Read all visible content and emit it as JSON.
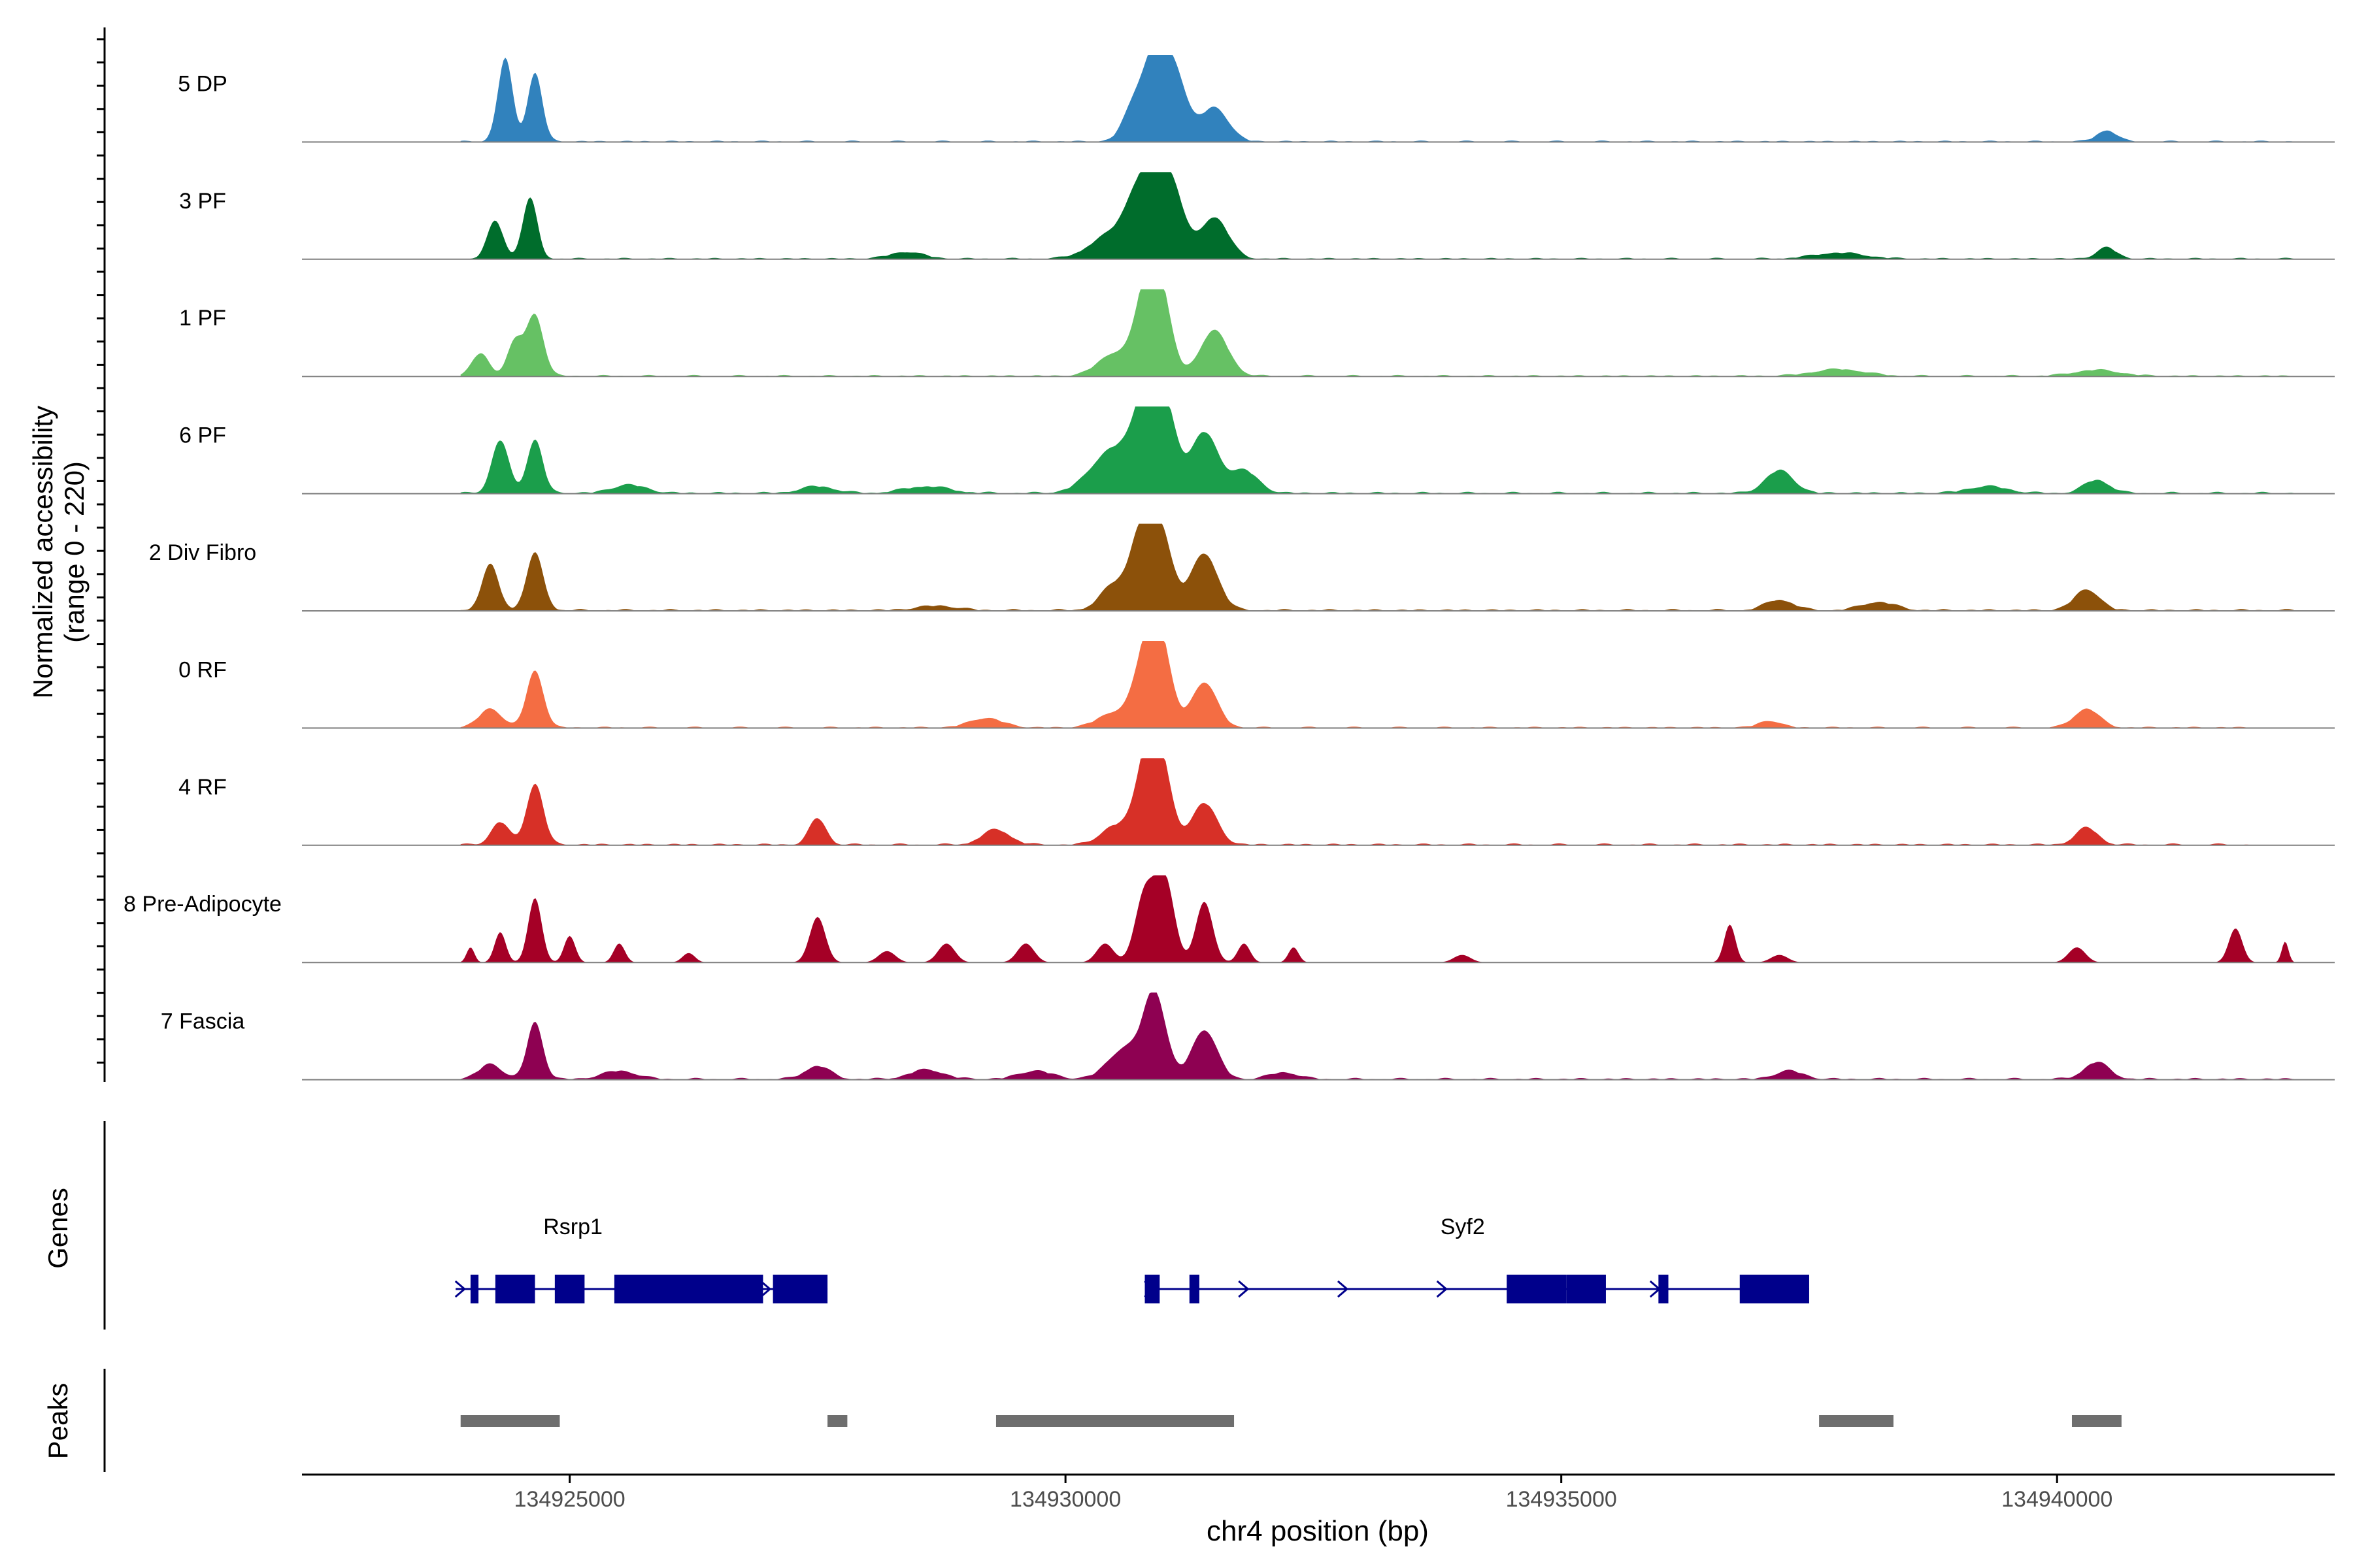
{
  "chart_data": {
    "type": "area",
    "title": "",
    "xlabel": "chr4 position (bp)",
    "ylabel": "Normalized accessibility",
    "ylabel_range": "(range 0 - 220)",
    "ylim": [
      0,
      220
    ],
    "xlim": [
      134922300,
      134942800
    ],
    "x_ticks": [
      134925000,
      134930000,
      134935000,
      134940000
    ],
    "x_tick_labels": [
      "134925000",
      "134930000",
      "134935000",
      "134940000"
    ],
    "tracks": [
      {
        "name": "5 DP",
        "color": "#3182bd",
        "baseline": 4,
        "peaks": [
          [
            134924350,
            220,
            26
          ],
          [
            134924650,
            180,
            26
          ],
          [
            134930700,
            100,
            40
          ],
          [
            134930900,
            200,
            38
          ],
          [
            134931100,
            180,
            42
          ],
          [
            134931500,
            90,
            50
          ],
          [
            134940500,
            30,
            35
          ]
        ],
        "extent": [
          134923900,
          134942400
        ]
      },
      {
        "name": "3 PF",
        "color": "#006d2c",
        "baseline": 4,
        "peaks": [
          [
            134924250,
            100,
            28
          ],
          [
            134924600,
            160,
            26
          ],
          [
            134928400,
            18,
            60
          ],
          [
            134930500,
            70,
            80
          ],
          [
            134930700,
            100,
            40
          ],
          [
            134930900,
            220,
            42
          ],
          [
            134931100,
            150,
            40
          ],
          [
            134931500,
            110,
            50
          ],
          [
            134937800,
            16,
            90
          ],
          [
            134940500,
            30,
            35
          ]
        ],
        "extent": [
          134923900,
          134942400
        ]
      },
      {
        "name": "1 PF",
        "color": "#66c164",
        "baseline": 4,
        "peaks": [
          [
            134924100,
            60,
            30
          ],
          [
            134924450,
            90,
            28
          ],
          [
            134924650,
            160,
            30
          ],
          [
            134930500,
            60,
            60
          ],
          [
            134930800,
            180,
            38
          ],
          [
            134930950,
            220,
            40
          ],
          [
            134931500,
            120,
            50
          ],
          [
            134937800,
            18,
            90
          ],
          [
            134940400,
            16,
            80
          ]
        ],
        "extent": [
          134923900,
          134942400
        ]
      },
      {
        "name": "6 PF",
        "color": "#1b9e4b",
        "baseline": 5,
        "peaks": [
          [
            134924300,
            140,
            30
          ],
          [
            134924650,
            140,
            28
          ],
          [
            134925600,
            22,
            60
          ],
          [
            134927500,
            18,
            60
          ],
          [
            134928600,
            18,
            80
          ],
          [
            134930500,
            120,
            80
          ],
          [
            134930800,
            200,
            40
          ],
          [
            134931000,
            220,
            42
          ],
          [
            134931400,
            160,
            48
          ],
          [
            134931800,
            60,
            50
          ],
          [
            134937200,
            60,
            50
          ],
          [
            134939300,
            18,
            70
          ],
          [
            134940400,
            35,
            45
          ]
        ],
        "extent": [
          134923900,
          134942400
        ]
      },
      {
        "name": "2 Div Fibro",
        "color": "#8c510a",
        "baseline": 5,
        "peaks": [
          [
            134924200,
            120,
            30
          ],
          [
            134924650,
            150,
            30
          ],
          [
            134928700,
            12,
            70
          ],
          [
            134930500,
            70,
            50
          ],
          [
            134930750,
            170,
            36
          ],
          [
            134930950,
            220,
            42
          ],
          [
            134931400,
            150,
            48
          ],
          [
            134937200,
            28,
            50
          ],
          [
            134938200,
            22,
            60
          ],
          [
            134940300,
            55,
            45
          ]
        ],
        "extent": [
          134923900,
          134942400
        ]
      },
      {
        "name": "0 RF",
        "color": "#f46d43",
        "baseline": 4,
        "peaks": [
          [
            134924200,
            50,
            40
          ],
          [
            134924650,
            150,
            30
          ],
          [
            134929200,
            25,
            60
          ],
          [
            134930500,
            40,
            60
          ],
          [
            134930800,
            160,
            40
          ],
          [
            134930950,
            220,
            40
          ],
          [
            134931400,
            120,
            45
          ],
          [
            134937100,
            18,
            40
          ],
          [
            134940300,
            50,
            45
          ]
        ],
        "extent": [
          134923900,
          134942000
        ]
      },
      {
        "name": "4 RF",
        "color": "#d73027",
        "baseline": 5,
        "peaks": [
          [
            134924300,
            60,
            32
          ],
          [
            134924650,
            160,
            30
          ],
          [
            134927500,
            70,
            30
          ],
          [
            134929300,
            40,
            50
          ],
          [
            134930500,
            50,
            50
          ],
          [
            134930800,
            180,
            38
          ],
          [
            134930950,
            220,
            40
          ],
          [
            134931400,
            110,
            45
          ],
          [
            134940300,
            45,
            40
          ]
        ],
        "extent": [
          134923900,
          134942000
        ]
      },
      {
        "name": "8 Pre-Adipocyte",
        "color": "#a50026",
        "baseline": 0,
        "peaks": [
          [
            134924000,
            40,
            14
          ],
          [
            134924300,
            80,
            20
          ],
          [
            134924650,
            170,
            24
          ],
          [
            134925000,
            70,
            20
          ],
          [
            134925500,
            50,
            20
          ],
          [
            134926200,
            25,
            22
          ],
          [
            134927500,
            120,
            28
          ],
          [
            134928200,
            30,
            30
          ],
          [
            134928800,
            50,
            30
          ],
          [
            134929600,
            50,
            30
          ],
          [
            134930400,
            50,
            30
          ],
          [
            134930800,
            180,
            34
          ],
          [
            134931000,
            220,
            34
          ],
          [
            134931400,
            160,
            30
          ],
          [
            134931800,
            50,
            22
          ],
          [
            134932300,
            40,
            18
          ],
          [
            134934000,
            20,
            30
          ],
          [
            134936700,
            100,
            20
          ],
          [
            134937200,
            20,
            30
          ],
          [
            134940200,
            40,
            30
          ],
          [
            134941800,
            90,
            24
          ],
          [
            134942300,
            55,
            12
          ]
        ],
        "extent": [
          134923900,
          134942400
        ]
      },
      {
        "name": "7 Fascia",
        "color": "#8e0152",
        "baseline": 5,
        "peaks": [
          [
            134924200,
            40,
            40
          ],
          [
            134924650,
            150,
            28
          ],
          [
            134925500,
            22,
            60
          ],
          [
            134927500,
            35,
            45
          ],
          [
            134928600,
            25,
            60
          ],
          [
            134929700,
            22,
            60
          ],
          [
            134930600,
            80,
            60
          ],
          [
            134930900,
            220,
            40
          ],
          [
            134931400,
            130,
            45
          ],
          [
            134932200,
            18,
            50
          ],
          [
            134937300,
            22,
            50
          ],
          [
            134940400,
            45,
            45
          ]
        ],
        "extent": [
          134923900,
          134942400
        ]
      }
    ],
    "genes": [
      {
        "name": "Rsrp1",
        "strand": "+",
        "start": 134923850,
        "end": 134927600,
        "exons": [
          [
            134924000,
            134924080
          ],
          [
            134924250,
            134924650
          ],
          [
            134924850,
            134925150
          ],
          [
            134925450,
            134926950
          ],
          [
            134927050,
            134927600
          ]
        ],
        "arrows": [
          134923900,
          134926980
        ]
      },
      {
        "name": "Syf2",
        "strand": "+",
        "start": 134930800,
        "end": 134937500,
        "exons": [
          [
            134930800,
            134930950
          ],
          [
            134931250,
            134931350
          ],
          [
            134934450,
            134935050
          ],
          [
            134935050,
            134935450
          ],
          [
            134935980,
            134936080
          ],
          [
            134936800,
            134937500
          ]
        ],
        "arrows": [
          134930850,
          134931800,
          134932800,
          134933800,
          134935950
        ]
      }
    ],
    "peaks": [
      [
        134923900,
        134924900
      ],
      [
        134927600,
        134927800
      ],
      [
        134929300,
        134931700
      ],
      [
        134937600,
        134938350
      ],
      [
        134940150,
        134940650
      ]
    ],
    "panel_labels": {
      "genes": "Genes",
      "peaks": "Peaks"
    }
  }
}
